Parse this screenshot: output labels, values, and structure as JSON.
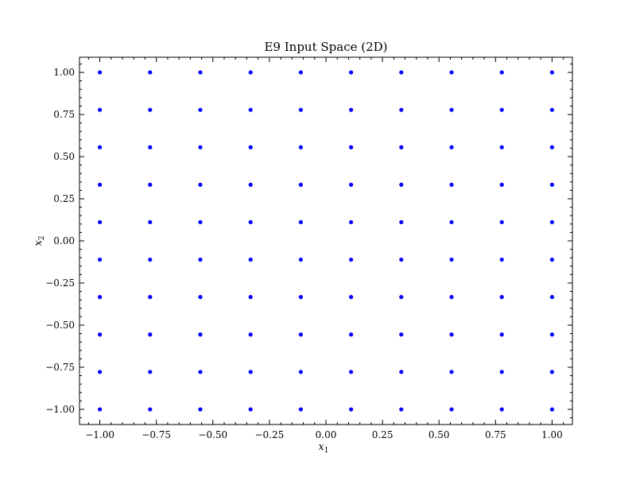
{
  "chart_data": {
    "type": "scatter",
    "title": "E9 Input Space (2D)",
    "xlabel": {
      "main": "x",
      "sub": "1"
    },
    "ylabel": {
      "main": "x",
      "sub": "2"
    },
    "xlim": [
      -1.09,
      1.09
    ],
    "ylim": [
      -1.09,
      1.09
    ],
    "grid": false,
    "marker_color": "#0000ff",
    "xticks": [
      -1.0,
      -0.75,
      -0.5,
      -0.25,
      0.0,
      0.25,
      0.5,
      0.75,
      1.0
    ],
    "xtick_labels": [
      "−1.00",
      "−0.75",
      "−0.50",
      "−0.25",
      "0.00",
      "0.25",
      "0.50",
      "0.75",
      "1.00"
    ],
    "yticks": [
      -1.0,
      -0.75,
      -0.5,
      -0.25,
      0.0,
      0.25,
      0.5,
      0.75,
      1.0
    ],
    "ytick_labels": [
      "−1.00",
      "−0.75",
      "−0.50",
      "−0.25",
      "0.00",
      "0.25",
      "0.50",
      "0.75",
      "1.00"
    ],
    "grid_values": [
      -1.0,
      -0.7778,
      -0.5556,
      -0.3333,
      -0.1111,
      0.1111,
      0.3333,
      0.5556,
      0.7778,
      1.0
    ]
  }
}
